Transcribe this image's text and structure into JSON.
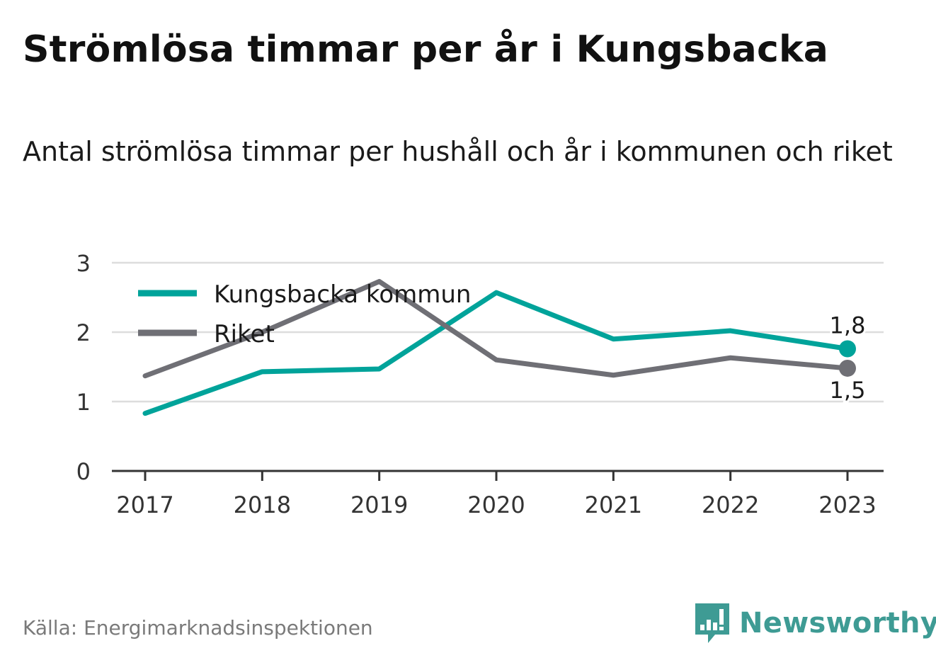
{
  "header": {
    "title": "Strömlösa timmar per år i Kungsbacka",
    "subtitle": "Antal strömlösa timmar per hushåll och år i kommunen och riket"
  },
  "footer": {
    "source": "Källa: Energimarknadsinspektionen",
    "brand": "Newsworthy",
    "brand_icon": "bar-chart-speech-bubble-icon"
  },
  "colors": {
    "kungsbacka": "#00a39a",
    "riket": "#6f6f75",
    "grid": "#dddddd",
    "axis": "#333333",
    "brand": "#3e9b94"
  },
  "chart_data": {
    "type": "line",
    "x": [
      "2017",
      "2018",
      "2019",
      "2020",
      "2021",
      "2022",
      "2023"
    ],
    "ylim": [
      0,
      3
    ],
    "yticks": [
      "0",
      "1",
      "2",
      "3"
    ],
    "grid": true,
    "legend": "top-left",
    "series": [
      {
        "name": "Kungsbacka kommun",
        "values": [
          0.83,
          1.43,
          1.47,
          2.57,
          1.9,
          2.02,
          1.76
        ],
        "end_label": "1,8"
      },
      {
        "name": "Riket",
        "values": [
          1.37,
          2.0,
          2.73,
          1.6,
          1.38,
          1.63,
          1.48
        ],
        "end_label": "1,5"
      }
    ]
  }
}
